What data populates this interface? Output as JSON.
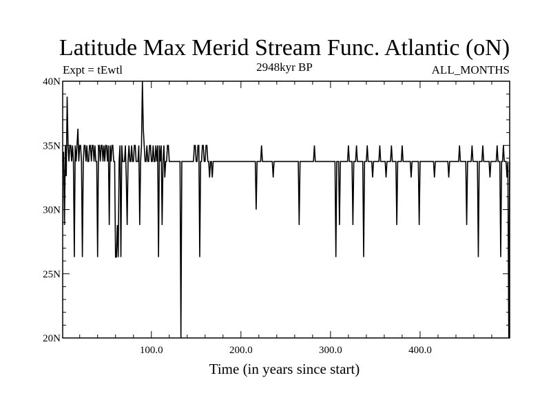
{
  "chart_data": {
    "type": "line",
    "title": "Latitude Max Merid Stream Func. Atlantic (oN)",
    "subtitle_left": "Expt = tEwtl",
    "subtitle_center": "2948kyr BP",
    "subtitle_right": "ALL_MONTHS",
    "xlabel": "Time (in years since start)",
    "ylabel": "",
    "xlim": [
      1,
      500
    ],
    "ylim": [
      20,
      40
    ],
    "x_ticks": [
      {
        "value": 100,
        "label": "100.0"
      },
      {
        "value": 200,
        "label": "200.0"
      },
      {
        "value": 300,
        "label": "300.0"
      },
      {
        "value": 400,
        "label": "400.0"
      }
    ],
    "y_ticks": [
      {
        "value": 20,
        "label": "20N"
      },
      {
        "value": 25,
        "label": "25N"
      },
      {
        "value": 30,
        "label": "30N"
      },
      {
        "value": 35,
        "label": "35N"
      },
      {
        "value": 40,
        "label": "40N"
      }
    ],
    "baseline": 33.75,
    "series": [
      {
        "name": "latitude",
        "values": [
          33.75,
          34.5,
          28.8,
          35,
          32.6,
          38.8,
          35,
          33.75,
          35,
          35,
          33.75,
          35,
          33.75,
          26.3,
          35,
          33.75,
          35,
          36.3,
          33.75,
          35,
          35,
          33.75,
          26.3,
          33.75,
          35,
          35,
          33.75,
          35,
          33.75,
          33.75,
          35,
          35,
          33.75,
          35,
          35,
          33.75,
          35,
          33.75,
          33.75,
          26.3,
          35,
          35,
          33.75,
          35,
          35,
          33.75,
          35,
          33.75,
          35,
          35,
          33.75,
          35,
          28.8,
          35,
          33.75,
          35,
          35,
          33.75,
          33.75,
          26.3,
          26.3,
          28.8,
          26.3,
          33.75,
          35,
          26.3,
          35,
          33.75,
          33.75,
          33.75,
          35,
          32.5,
          28.8,
          33.75,
          35,
          33.75,
          33.75,
          35,
          33.75,
          33.75,
          35,
          35,
          33.75,
          33.75,
          33.75,
          35,
          28.8,
          33.75,
          35,
          40,
          36.3,
          35,
          33.75,
          33.75,
          35,
          33.75,
          33.75,
          35,
          35,
          33.75,
          33.75,
          35,
          33.75,
          33.75,
          35,
          33.75,
          35,
          26.3,
          35,
          33.75,
          35,
          28.8,
          33.75,
          35,
          32.5,
          33.75,
          33.75,
          35,
          35,
          33.75,
          33.75,
          33.75,
          33.75,
          33.75,
          33.75,
          33.75,
          33.75,
          33.75,
          33.75,
          33.75,
          33.75,
          33.75,
          20,
          33.75,
          33.75,
          33.75,
          33.75,
          33.75,
          33.75,
          33.75,
          33.75,
          33.75,
          33.75,
          33.75,
          33.75,
          33.75,
          33.75,
          35,
          35,
          33.75,
          33.75,
          35,
          35,
          26.3,
          33.75,
          33.75,
          35,
          35,
          33.75,
          33.75,
          35,
          35,
          33.75,
          33.75,
          32.5,
          33.75,
          33.75,
          32.5,
          33.75,
          33.75
        ],
        "spikes": [
          {
            "x": 217,
            "value": 30
          },
          {
            "x": 223,
            "value": 35
          },
          {
            "x": 236,
            "value": 32.5
          },
          {
            "x": 265,
            "value": 28.8
          },
          {
            "x": 282,
            "value": 35
          },
          {
            "x": 306,
            "value": 26.3
          },
          {
            "x": 310,
            "value": 28.8
          },
          {
            "x": 320,
            "value": 35
          },
          {
            "x": 325,
            "value": 28.8
          },
          {
            "x": 329,
            "value": 35
          },
          {
            "x": 337,
            "value": 26.3
          },
          {
            "x": 341,
            "value": 35
          },
          {
            "x": 347,
            "value": 32.5
          },
          {
            "x": 355,
            "value": 35
          },
          {
            "x": 362,
            "value": 32.5
          },
          {
            "x": 368,
            "value": 35
          },
          {
            "x": 374,
            "value": 28.8
          },
          {
            "x": 380,
            "value": 35
          },
          {
            "x": 390,
            "value": 32.5
          },
          {
            "x": 399,
            "value": 28.8
          },
          {
            "x": 416,
            "value": 32.5
          },
          {
            "x": 432,
            "value": 32.5
          },
          {
            "x": 444,
            "value": 35
          },
          {
            "x": 452,
            "value": 28.8
          },
          {
            "x": 458,
            "value": 35
          },
          {
            "x": 465,
            "value": 26.3
          },
          {
            "x": 470,
            "value": 35
          },
          {
            "x": 478,
            "value": 32.5
          },
          {
            "x": 486,
            "value": 35
          },
          {
            "x": 490,
            "value": 26.3
          },
          {
            "x": 493,
            "value": 35
          },
          {
            "x": 497,
            "value": 32.5
          },
          {
            "x": 499,
            "value": 20
          }
        ]
      }
    ]
  }
}
